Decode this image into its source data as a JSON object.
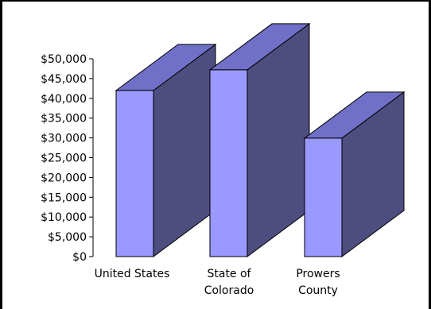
{
  "chart_data": {
    "type": "bar",
    "title": "",
    "categories": [
      "United States",
      "State of Colorado",
      "Prowers County"
    ],
    "category_label_lines": [
      [
        "United States"
      ],
      [
        "State of",
        "Colorado"
      ],
      [
        "Prowers",
        "County"
      ]
    ],
    "values": [
      41994,
      47203,
      29935
    ],
    "ylim": [
      0,
      50000
    ],
    "yticks": [
      0,
      5000,
      10000,
      15000,
      20000,
      25000,
      30000,
      35000,
      40000,
      45000,
      50000
    ],
    "ytick_labels": [
      "$0",
      "$5,000",
      "$10,000",
      "$15,000",
      "$20,000",
      "$25,000",
      "$30,000",
      "$35,000",
      "$40,000",
      "$45,000",
      "$50,000"
    ],
    "grid": false,
    "legend": "none",
    "three_d": true,
    "colors": {
      "front": "#9999FF",
      "top": "#7070C8",
      "side": "#4D4D80",
      "axis": "#000000",
      "border": "#000000"
    }
  }
}
